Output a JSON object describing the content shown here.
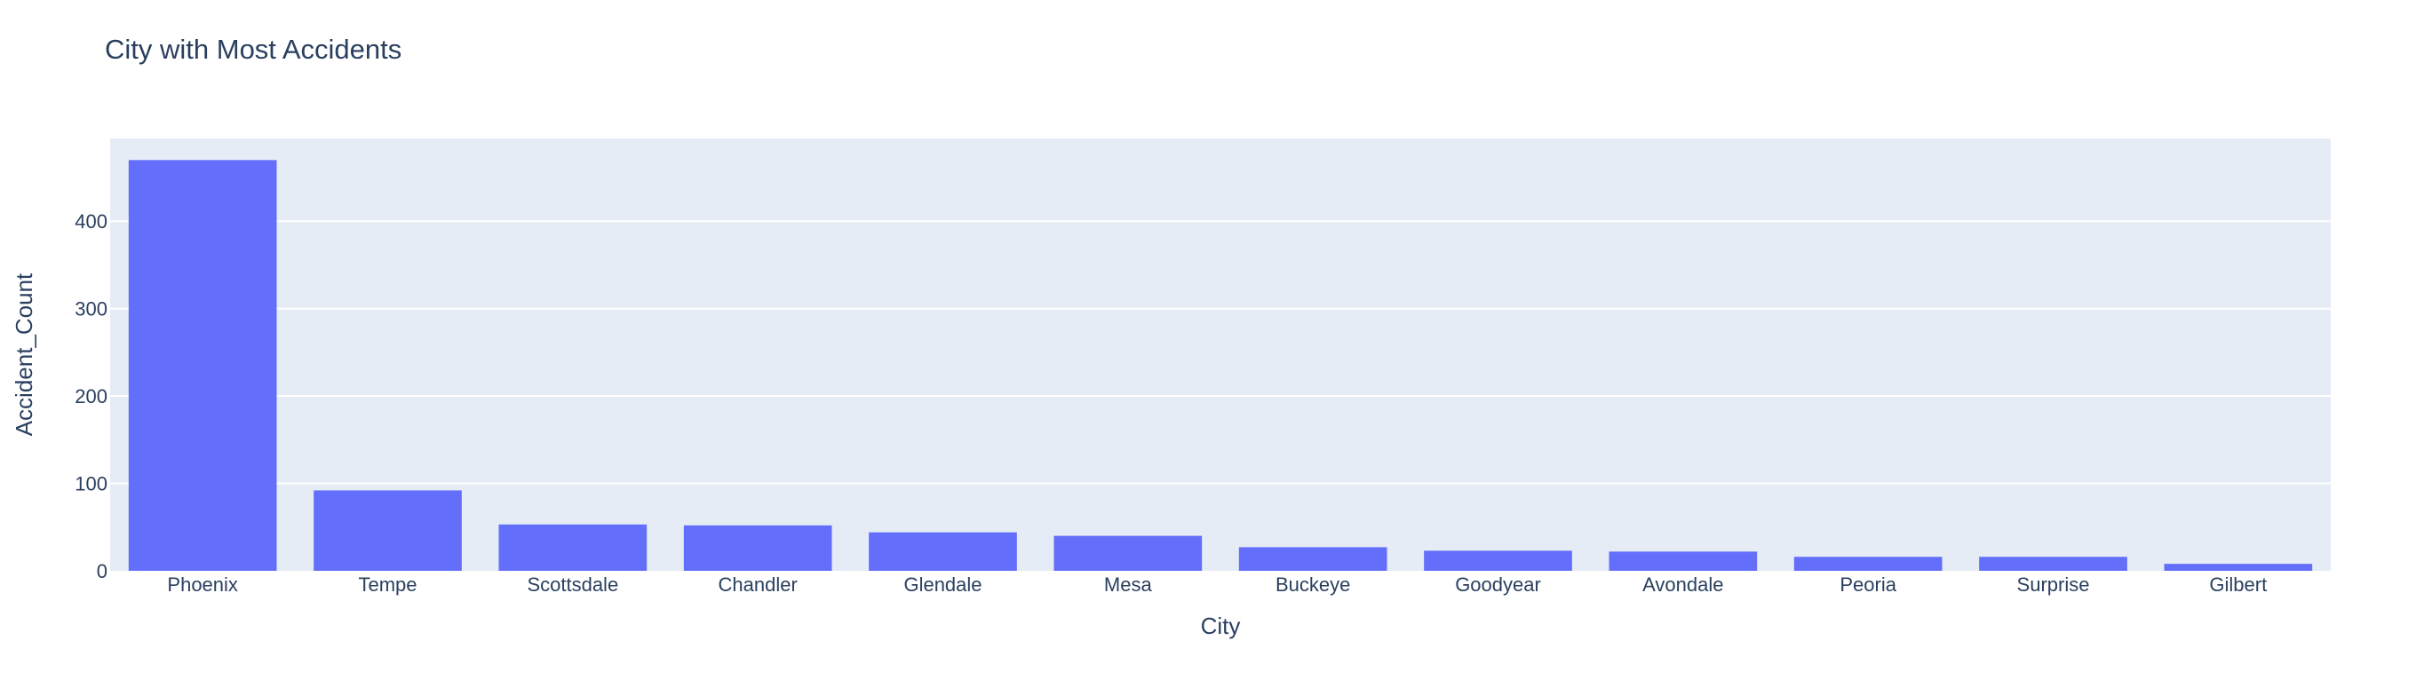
{
  "chart_data": {
    "type": "bar",
    "title": "City with Most Accidents",
    "xlabel": "City",
    "ylabel": "Accident_Count",
    "categories": [
      "Phoenix",
      "Tempe",
      "Scottsdale",
      "Chandler",
      "Glendale",
      "Mesa",
      "Buckeye",
      "Goodyear",
      "Avondale",
      "Peoria",
      "Surprise",
      "Gilbert"
    ],
    "values": [
      470,
      92,
      53,
      52,
      44,
      40,
      27,
      23,
      22,
      16,
      16,
      8
    ],
    "ylim": [
      0,
      494.7
    ],
    "yticks": [
      0,
      100,
      200,
      300,
      400
    ],
    "grid": true,
    "legend": "none",
    "colors": {
      "bar": "#636efa",
      "plot_background": "#e5ecf6",
      "grid": "#ffffff",
      "text": "#2a3f5f"
    }
  }
}
